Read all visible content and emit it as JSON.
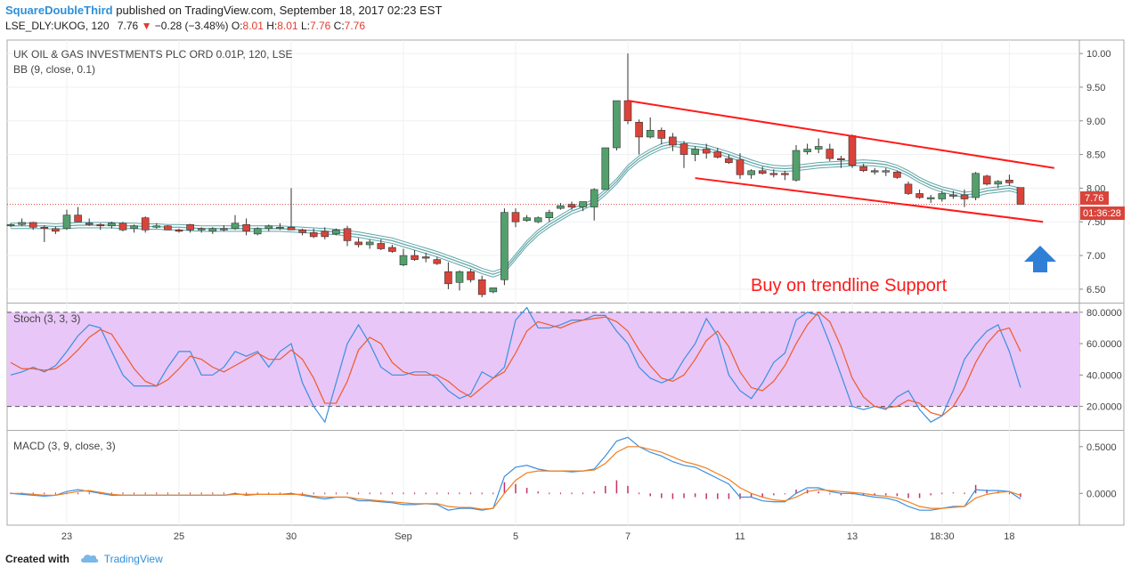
{
  "header": {
    "author": "SquareDoubleThird",
    "published": "published on TradingView.com, September 18, 2017 02:23 EST"
  },
  "quote": {
    "symbol": "LSE_DLY:UKOG, 120",
    "last": "7.76",
    "arrow": "▼",
    "change": "−0.28 (−3.48%)",
    "o_label": "O:",
    "o": "8.01",
    "h_label": "H:",
    "h": "8.01",
    "l_label": "L:",
    "l": "7.76",
    "c_label": "C:",
    "c": "7.76"
  },
  "footer": {
    "created": "Created with",
    "brand": "TradingView"
  },
  "colors": {
    "up": "#53a06d",
    "down": "#d9443a",
    "bb": "#5fa4a8",
    "trend": "#ff1a1a",
    "stochK": "#3a8fe0",
    "stochD": "#f05a2a",
    "macd": "#3a8fe0",
    "signal": "#f07f20",
    "hist": "#c7306a",
    "stochBand": "#e8c6f7",
    "arrow": "#2f7fd6"
  },
  "chart_data": [
    {
      "type": "candlestick",
      "title": "UK OIL & GAS INVESTMENTS PLC ORD 0.01P, 120, LSE",
      "indicator": "BB (9, close, 0.1)",
      "ylim": [
        6.3,
        10.2
      ],
      "yticks": [
        "10.00",
        "9.50",
        "9.00",
        "8.50",
        "8.00",
        "7.50",
        "7.00",
        "6.50"
      ],
      "xticks": [
        {
          "i": 5,
          "label": "23"
        },
        {
          "i": 15,
          "label": "25"
        },
        {
          "i": 25,
          "label": "30"
        },
        {
          "i": 35,
          "label": "Sep"
        },
        {
          "i": 45,
          "label": "5"
        },
        {
          "i": 55,
          "label": "7"
        },
        {
          "i": 65,
          "label": "11"
        },
        {
          "i": 75,
          "label": "13"
        },
        {
          "i": 83,
          "label": "18:30"
        },
        {
          "i": 89,
          "label": "18"
        }
      ],
      "last_price_label": "7.76",
      "last_price": 7.76,
      "countdown": "01:36:28",
      "annotation": "Buy on trendline Support",
      "trendlines": [
        {
          "i1": 55,
          "y1": 9.3,
          "i2": 93,
          "y2": 8.3
        },
        {
          "i1": 61,
          "y1": 8.15,
          "i2": 92,
          "y2": 7.5
        }
      ],
      "ohlc": [
        [
          7.45,
          7.48,
          7.42,
          7.46
        ],
        [
          7.46,
          7.55,
          7.44,
          7.49
        ],
        [
          7.49,
          7.5,
          7.38,
          7.42
        ],
        [
          7.42,
          7.45,
          7.2,
          7.4
        ],
        [
          7.4,
          7.43,
          7.32,
          7.36
        ],
        [
          7.4,
          7.68,
          7.38,
          7.6
        ],
        [
          7.6,
          7.72,
          7.5,
          7.5
        ],
        [
          7.48,
          7.55,
          7.44,
          7.46
        ],
        [
          7.46,
          7.48,
          7.38,
          7.44
        ],
        [
          7.44,
          7.5,
          7.4,
          7.48
        ],
        [
          7.48,
          7.5,
          7.36,
          7.38
        ],
        [
          7.4,
          7.46,
          7.34,
          7.44
        ],
        [
          7.56,
          7.58,
          7.34,
          7.38
        ],
        [
          7.42,
          7.48,
          7.4,
          7.44
        ],
        [
          7.44,
          7.45,
          7.38,
          7.38
        ],
        [
          7.38,
          7.4,
          7.34,
          7.36
        ],
        [
          7.46,
          7.47,
          7.34,
          7.38
        ],
        [
          7.4,
          7.42,
          7.34,
          7.38
        ],
        [
          7.36,
          7.42,
          7.32,
          7.4
        ],
        [
          7.4,
          7.45,
          7.36,
          7.38
        ],
        [
          7.4,
          7.6,
          7.38,
          7.48
        ],
        [
          7.46,
          7.55,
          7.3,
          7.36
        ],
        [
          7.32,
          7.42,
          7.3,
          7.4
        ],
        [
          7.4,
          7.46,
          7.36,
          7.44
        ],
        [
          7.4,
          7.48,
          7.38,
          7.42
        ],
        [
          7.42,
          8.0,
          7.38,
          7.38
        ],
        [
          7.38,
          7.4,
          7.3,
          7.34
        ],
        [
          7.34,
          7.4,
          7.26,
          7.28
        ],
        [
          7.36,
          7.42,
          7.24,
          7.28
        ],
        [
          7.32,
          7.4,
          7.3,
          7.38
        ],
        [
          7.4,
          7.44,
          7.14,
          7.22
        ],
        [
          7.2,
          7.26,
          7.12,
          7.16
        ],
        [
          7.16,
          7.24,
          7.1,
          7.2
        ],
        [
          7.18,
          7.24,
          7.08,
          7.1
        ],
        [
          7.12,
          7.16,
          7.04,
          7.06
        ],
        [
          6.86,
          7.1,
          6.84,
          7.0
        ],
        [
          7.0,
          7.08,
          6.92,
          6.94
        ],
        [
          6.98,
          7.04,
          6.9,
          6.96
        ],
        [
          6.94,
          6.98,
          6.86,
          6.88
        ],
        [
          6.76,
          6.9,
          6.5,
          6.58
        ],
        [
          6.6,
          6.78,
          6.48,
          6.76
        ],
        [
          6.76,
          6.8,
          6.6,
          6.64
        ],
        [
          6.64,
          6.7,
          6.38,
          6.42
        ],
        [
          6.46,
          6.52,
          6.44,
          6.52
        ],
        [
          6.64,
          7.7,
          6.56,
          7.64
        ],
        [
          7.64,
          7.7,
          7.42,
          7.5
        ],
        [
          7.52,
          7.6,
          7.5,
          7.56
        ],
        [
          7.5,
          7.58,
          7.48,
          7.56
        ],
        [
          7.56,
          7.68,
          7.5,
          7.64
        ],
        [
          7.7,
          7.78,
          7.68,
          7.74
        ],
        [
          7.76,
          7.8,
          7.68,
          7.72
        ],
        [
          7.72,
          7.8,
          7.66,
          7.8
        ],
        [
          7.72,
          8.0,
          7.52,
          7.98
        ],
        [
          7.98,
          8.6,
          7.98,
          8.6
        ],
        [
          8.6,
          9.3,
          8.56,
          9.3
        ],
        [
          9.3,
          10.0,
          8.95,
          9.0
        ],
        [
          8.98,
          9.02,
          8.5,
          8.76
        ],
        [
          8.76,
          9.05,
          8.74,
          8.86
        ],
        [
          8.86,
          8.9,
          8.65,
          8.74
        ],
        [
          8.76,
          8.82,
          8.55,
          8.64
        ],
        [
          8.66,
          8.7,
          8.3,
          8.5
        ],
        [
          8.5,
          8.62,
          8.4,
          8.58
        ],
        [
          8.58,
          8.66,
          8.44,
          8.52
        ],
        [
          8.54,
          8.6,
          8.44,
          8.46
        ],
        [
          8.44,
          8.5,
          8.36,
          8.38
        ],
        [
          8.42,
          8.52,
          8.14,
          8.2
        ],
        [
          8.2,
          8.28,
          8.14,
          8.26
        ],
        [
          8.26,
          8.32,
          8.2,
          8.22
        ],
        [
          8.22,
          8.28,
          8.16,
          8.2
        ],
        [
          8.22,
          8.26,
          8.12,
          8.2
        ],
        [
          8.12,
          8.64,
          8.1,
          8.56
        ],
        [
          8.54,
          8.66,
          8.5,
          8.58
        ],
        [
          8.58,
          8.74,
          8.52,
          8.62
        ],
        [
          8.58,
          8.66,
          8.4,
          8.44
        ],
        [
          8.44,
          8.48,
          8.3,
          8.42
        ],
        [
          8.78,
          8.8,
          8.3,
          8.34
        ],
        [
          8.32,
          8.36,
          8.24,
          8.26
        ],
        [
          8.26,
          8.3,
          8.2,
          8.24
        ],
        [
          8.24,
          8.3,
          8.18,
          8.26
        ],
        [
          8.24,
          8.26,
          8.14,
          8.16
        ],
        [
          8.06,
          8.1,
          7.9,
          7.92
        ],
        [
          7.92,
          7.98,
          7.84,
          7.86
        ],
        [
          7.84,
          7.9,
          7.78,
          7.86
        ],
        [
          7.84,
          7.96,
          7.8,
          7.92
        ],
        [
          7.9,
          7.96,
          7.84,
          7.88
        ],
        [
          7.9,
          7.98,
          7.72,
          7.84
        ],
        [
          7.86,
          8.24,
          7.82,
          8.22
        ],
        [
          8.18,
          8.2,
          8.04,
          8.06
        ],
        [
          8.06,
          8.12,
          8.0,
          8.1
        ],
        [
          8.12,
          8.2,
          8.04,
          8.08
        ],
        [
          8.01,
          8.01,
          7.76,
          7.76
        ]
      ],
      "bb_mid": [
        7.44,
        7.44,
        7.44,
        7.44,
        7.43,
        7.44,
        7.45,
        7.45,
        7.45,
        7.45,
        7.44,
        7.44,
        7.43,
        7.43,
        7.42,
        7.42,
        7.41,
        7.4,
        7.4,
        7.4,
        7.4,
        7.4,
        7.4,
        7.4,
        7.4,
        7.39,
        7.38,
        7.37,
        7.36,
        7.35,
        7.33,
        7.31,
        7.28,
        7.25,
        7.22,
        7.17,
        7.12,
        7.07,
        7.02,
        6.96,
        6.9,
        6.84,
        6.77,
        6.72,
        6.78,
        6.98,
        7.18,
        7.34,
        7.46,
        7.56,
        7.66,
        7.72,
        7.8,
        7.94,
        8.1,
        8.3,
        8.44,
        8.54,
        8.62,
        8.66,
        8.64,
        8.62,
        8.6,
        8.55,
        8.5,
        8.44,
        8.38,
        8.33,
        8.3,
        8.29,
        8.3,
        8.32,
        8.34,
        8.35,
        8.36,
        8.37,
        8.38,
        8.37,
        8.35,
        8.3,
        8.22,
        8.12,
        8.04,
        7.98,
        7.94,
        7.9,
        7.92,
        7.96,
        7.98,
        8.0,
        7.96
      ]
    },
    {
      "type": "line",
      "title": "Stoch (3, 3, 3)",
      "ylim": [
        5,
        85
      ],
      "yticks": [
        "80.0000",
        "60.0000",
        "40.0000",
        "20.0000"
      ],
      "band": [
        20,
        80
      ],
      "series": [
        {
          "name": "",
          "values": [
            40,
            42,
            45,
            42,
            46,
            55,
            65,
            72,
            70,
            55,
            40,
            33,
            33,
            33,
            45,
            55,
            55,
            40,
            40,
            45,
            55,
            52,
            55,
            45,
            55,
            60,
            35,
            20,
            10,
            35,
            60,
            72,
            60,
            45,
            40,
            40,
            42,
            42,
            38,
            30,
            25,
            28,
            42,
            38,
            45,
            75,
            83,
            70,
            70,
            72,
            75,
            75,
            78,
            78,
            68,
            60,
            45,
            38,
            35,
            38,
            50,
            60,
            76,
            65,
            40,
            30,
            25,
            35,
            48,
            54,
            75,
            80,
            78,
            60,
            40,
            20,
            18,
            20,
            18,
            26,
            30,
            18,
            10,
            14,
            30,
            50,
            60,
            68,
            72,
            55,
            32
          ]
        },
        {
          "name": "",
          "values": [
            48,
            44,
            44,
            43,
            44,
            49,
            56,
            64,
            69,
            66,
            55,
            44,
            36,
            33,
            37,
            44,
            52,
            50,
            45,
            42,
            46,
            50,
            54,
            50,
            50,
            56,
            50,
            38,
            22,
            22,
            36,
            56,
            64,
            60,
            48,
            42,
            40,
            40,
            40,
            36,
            30,
            26,
            32,
            38,
            42,
            54,
            68,
            74,
            72,
            70,
            73,
            75,
            76,
            77,
            74,
            68,
            56,
            46,
            38,
            36,
            40,
            50,
            62,
            68,
            58,
            42,
            32,
            30,
            36,
            46,
            60,
            72,
            80,
            74,
            58,
            38,
            26,
            20,
            19,
            20,
            24,
            22,
            16,
            14,
            20,
            32,
            48,
            60,
            68,
            70,
            55
          ]
        }
      ]
    },
    {
      "type": "line",
      "title": "MACD (3, 9, close, 3)",
      "ylim": [
        -0.34,
        0.66
      ],
      "yticks": [
        "0.5000",
        "0.0000"
      ],
      "series": [
        {
          "name": "",
          "values": [
            0.0,
            -0.01,
            -0.02,
            -0.03,
            -0.02,
            0.02,
            0.04,
            0.02,
            0.0,
            -0.02,
            -0.02,
            -0.02,
            -0.02,
            -0.02,
            -0.02,
            -0.02,
            -0.02,
            -0.02,
            -0.02,
            -0.02,
            0.0,
            -0.02,
            -0.01,
            -0.01,
            -0.01,
            0.0,
            -0.02,
            -0.04,
            -0.06,
            -0.04,
            -0.04,
            -0.08,
            -0.08,
            -0.09,
            -0.1,
            -0.12,
            -0.12,
            -0.11,
            -0.12,
            -0.18,
            -0.16,
            -0.16,
            -0.18,
            -0.16,
            0.18,
            0.28,
            0.3,
            0.26,
            0.24,
            0.24,
            0.23,
            0.24,
            0.26,
            0.4,
            0.56,
            0.6,
            0.5,
            0.44,
            0.4,
            0.34,
            0.3,
            0.28,
            0.22,
            0.16,
            0.1,
            -0.04,
            -0.04,
            -0.08,
            -0.09,
            -0.09,
            0.0,
            0.06,
            0.06,
            0.02,
            0.0,
            0.0,
            -0.02,
            -0.04,
            -0.05,
            -0.08,
            -0.14,
            -0.18,
            -0.18,
            -0.16,
            -0.14,
            -0.14,
            0.04,
            0.03,
            0.03,
            0.02,
            -0.06
          ]
        },
        {
          "name": "",
          "values": [
            0.0,
            0.0,
            -0.01,
            -0.02,
            -0.02,
            0.0,
            0.02,
            0.03,
            0.01,
            -0.01,
            -0.02,
            -0.02,
            -0.02,
            -0.02,
            -0.02,
            -0.02,
            -0.02,
            -0.02,
            -0.02,
            -0.02,
            -0.01,
            -0.01,
            -0.01,
            -0.01,
            -0.01,
            -0.01,
            -0.01,
            -0.03,
            -0.04,
            -0.04,
            -0.04,
            -0.06,
            -0.07,
            -0.08,
            -0.09,
            -0.1,
            -0.11,
            -0.11,
            -0.11,
            -0.14,
            -0.15,
            -0.15,
            -0.17,
            -0.16,
            0.0,
            0.14,
            0.22,
            0.24,
            0.24,
            0.24,
            0.24,
            0.24,
            0.25,
            0.32,
            0.44,
            0.5,
            0.5,
            0.47,
            0.44,
            0.39,
            0.34,
            0.31,
            0.27,
            0.21,
            0.15,
            0.06,
            0.0,
            -0.04,
            -0.07,
            -0.08,
            -0.04,
            0.02,
            0.04,
            0.03,
            0.02,
            0.01,
            0.0,
            -0.02,
            -0.03,
            -0.05,
            -0.09,
            -0.14,
            -0.16,
            -0.16,
            -0.15,
            -0.14,
            -0.05,
            -0.01,
            0.01,
            0.02,
            -0.02
          ]
        }
      ],
      "histogram": [
        0.0,
        0.0,
        0.0,
        0.0,
        0.0,
        0.0,
        0.0,
        0.0,
        0.0,
        0.0,
        0.0,
        0.0,
        0.0,
        0.0,
        0.0,
        0.0,
        0.0,
        0.0,
        0.0,
        0.0,
        0.0,
        0.0,
        0.0,
        0.0,
        0.0,
        0.0,
        0.0,
        0.0,
        0.0,
        0.0,
        0.0,
        0.0,
        0.0,
        0.0,
        0.0,
        0.0,
        0.0,
        0.0,
        0.0,
        0.0,
        0.0,
        0.0,
        0.0,
        0.0,
        0.12,
        0.1,
        0.06,
        0.02,
        0.0,
        0.0,
        0.0,
        0.0,
        0.02,
        0.08,
        0.14,
        0.08,
        0.0,
        -0.03,
        -0.05,
        -0.06,
        -0.05,
        -0.04,
        -0.06,
        -0.06,
        -0.06,
        -0.06,
        -0.04,
        -0.04,
        -0.02,
        -0.01,
        0.04,
        0.04,
        0.02,
        -0.01,
        -0.02,
        -0.01,
        -0.02,
        -0.02,
        -0.02,
        -0.03,
        -0.05,
        -0.05,
        -0.02,
        0.0,
        0.01,
        0.0,
        0.09,
        0.04,
        0.02,
        0.0,
        -0.04
      ]
    }
  ]
}
